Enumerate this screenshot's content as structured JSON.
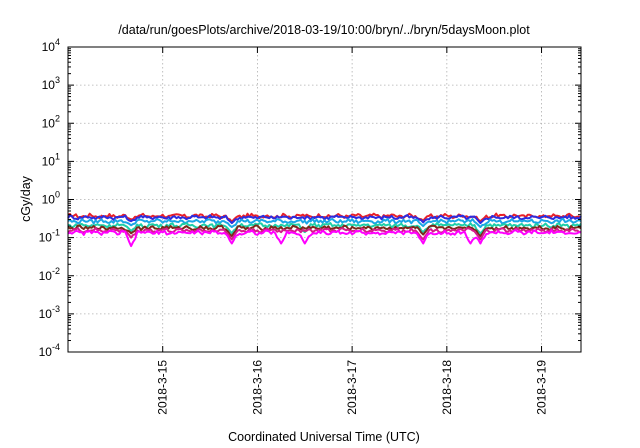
{
  "chart_data": {
    "type": "line",
    "title": "/data/run/goesPlots/archive/2018-03-19/10:00/bryn/../bryn/5daysMoon.plot",
    "xlabel": "Coordinated Universal Time (UTC)",
    "ylabel": "cGy/day",
    "yscale": "log",
    "ylim": [
      0.0001,
      10000
    ],
    "xlim": [
      "2018-03-14 00:00",
      "2018-03-19 10:00"
    ],
    "yticks": [
      {
        "value": 0.0001,
        "base": "10",
        "exp": "-4"
      },
      {
        "value": 0.001,
        "base": "10",
        "exp": "-3"
      },
      {
        "value": 0.01,
        "base": "10",
        "exp": "-2"
      },
      {
        "value": 0.1,
        "base": "10",
        "exp": "-1"
      },
      {
        "value": 1,
        "base": "10",
        "exp": "0"
      },
      {
        "value": 10,
        "base": "10",
        "exp": "1"
      },
      {
        "value": 100,
        "base": "10",
        "exp": "2"
      },
      {
        "value": 1000,
        "base": "10",
        "exp": "3"
      },
      {
        "value": 10000,
        "base": "10",
        "exp": "4"
      }
    ],
    "xticks": [
      "2018-3-15",
      "2018-3-16",
      "2018-3-17",
      "2018-3-18",
      "2018-3-19"
    ],
    "grid": true,
    "legend": "none",
    "series": [
      {
        "color": "#e8202a",
        "base": 0.37,
        "dips": [
          [
            "2018-03-14 16:00",
            0.3
          ],
          [
            "2018-03-15 17:30",
            0.26
          ],
          [
            "2018-03-17 18:00",
            0.28
          ],
          [
            "2018-03-18 08:30",
            0.27
          ]
        ]
      },
      {
        "color": "#2c2ce0",
        "base": 0.34,
        "dips": [
          [
            "2018-03-14 16:00",
            0.27
          ],
          [
            "2018-03-15 17:30",
            0.24
          ],
          [
            "2018-03-17 18:00",
            0.25
          ],
          [
            "2018-03-18 08:30",
            0.24
          ]
        ]
      },
      {
        "color": "#1aa6e6",
        "base": 0.27,
        "dips": [
          [
            "2018-03-14 16:00",
            0.21
          ],
          [
            "2018-03-15 17:30",
            0.19
          ],
          [
            "2018-03-17 18:00",
            0.2
          ],
          [
            "2018-03-18 08:30",
            0.19
          ]
        ]
      },
      {
        "color": "#1ecfa8",
        "base": 0.21,
        "dips": [
          [
            "2018-03-14 16:00",
            0.15
          ],
          [
            "2018-03-15 17:30",
            0.13
          ],
          [
            "2018-03-16 12:00",
            0.14
          ],
          [
            "2018-03-17 18:00",
            0.14
          ],
          [
            "2018-03-18 08:30",
            0.13
          ]
        ]
      },
      {
        "color": "#7a2a1a",
        "base": 0.18,
        "dips": [
          [
            "2018-03-14 16:00",
            0.13
          ],
          [
            "2018-03-15 17:30",
            0.11
          ],
          [
            "2018-03-17 18:00",
            0.12
          ],
          [
            "2018-03-18 08:30",
            0.11
          ]
        ]
      },
      {
        "color": "#d61c8a",
        "base": 0.155,
        "dips": [
          [
            "2018-03-14 16:00",
            0.1
          ],
          [
            "2018-03-15 17:30",
            0.09
          ],
          [
            "2018-03-17 18:00",
            0.09
          ],
          [
            "2018-03-18 08:30",
            0.09
          ]
        ]
      },
      {
        "color": "#ff00ff",
        "base": 0.135,
        "dips": [
          [
            "2018-03-14 16:00",
            0.06
          ],
          [
            "2018-03-15 17:30",
            0.07
          ],
          [
            "2018-03-16 06:00",
            0.07
          ],
          [
            "2018-03-16 12:00",
            0.07
          ],
          [
            "2018-03-17 18:00",
            0.07
          ],
          [
            "2018-03-18 06:00",
            0.07
          ],
          [
            "2018-03-18 08:30",
            0.07
          ]
        ]
      }
    ]
  }
}
